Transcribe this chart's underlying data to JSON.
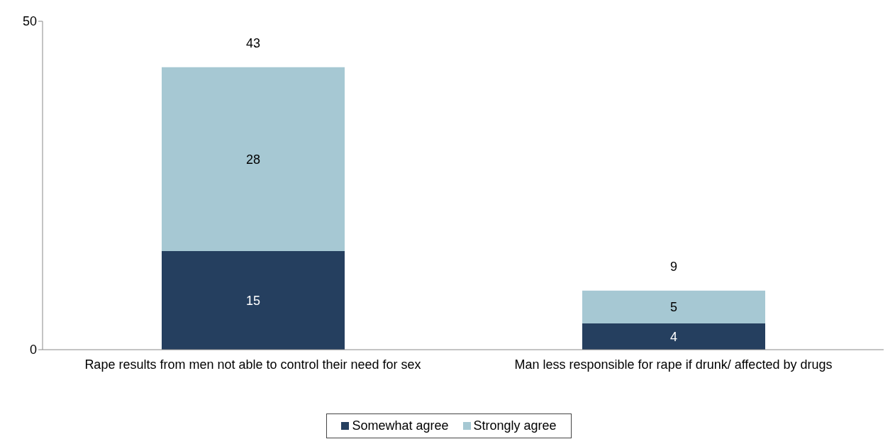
{
  "chart_data": {
    "type": "bar",
    "stacked": true,
    "categories": [
      "Rape results from men not able to control their need for sex",
      "Man less responsible for rape if drunk/ affected by drugs"
    ],
    "series": [
      {
        "name": "Somewhat agree",
        "color": "#253f5f",
        "values": [
          15,
          4
        ]
      },
      {
        "name": "Strongly agree",
        "color": "#a6c8d3",
        "values": [
          28,
          5
        ]
      }
    ],
    "totals": [
      "43",
      "9"
    ],
    "data_labels": true,
    "ylim": [
      0,
      50
    ],
    "yticks": [
      0,
      50
    ],
    "grid": false,
    "legend": "bottom"
  }
}
